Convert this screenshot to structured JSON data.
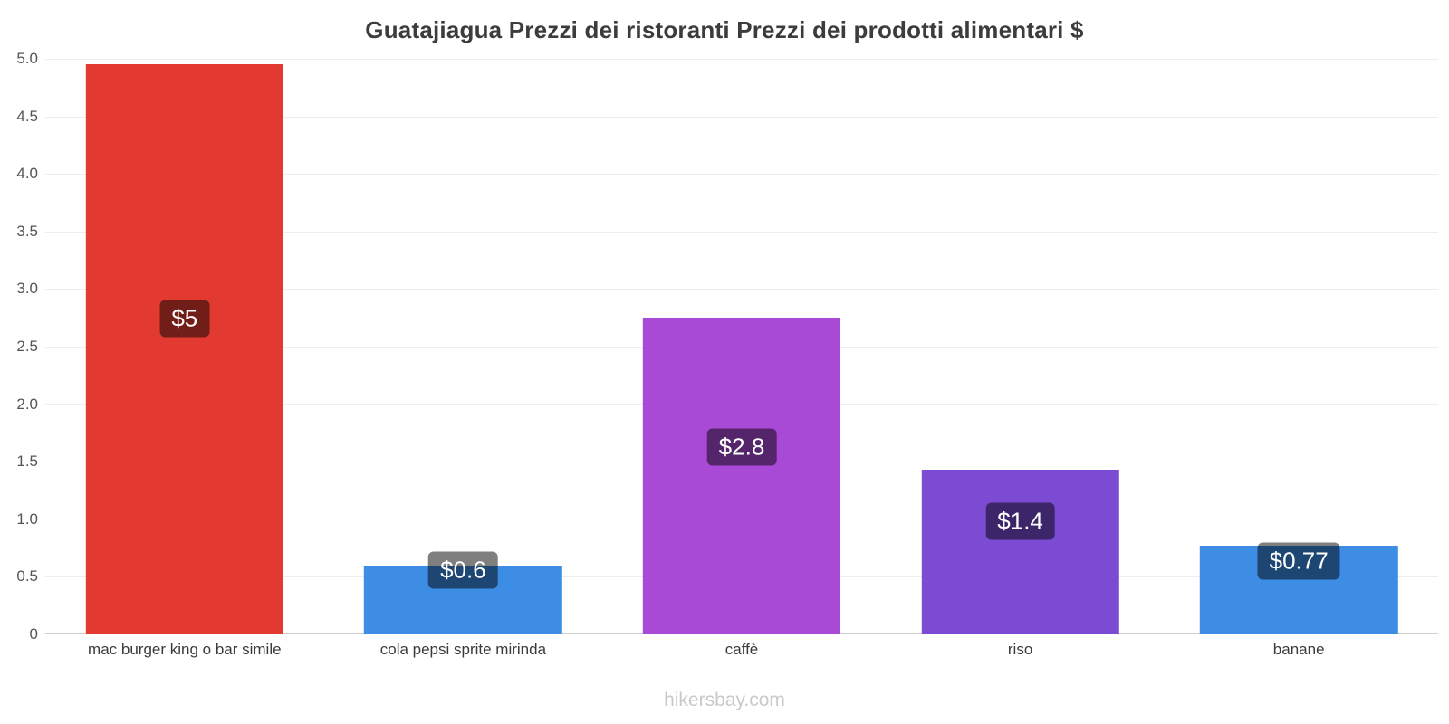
{
  "title": "Guatajiagua Prezzi dei ristoranti Prezzi dei prodotti alimentari $",
  "footer": "hikersbay.com",
  "chart_data": {
    "type": "bar",
    "title": "Guatajiagua Prezzi dei ristoranti Prezzi dei prodotti alimentari $",
    "categories": [
      "mac burger king o bar simile",
      "cola pepsi sprite mirinda",
      "caffè",
      "riso",
      "banane"
    ],
    "values": [
      4.95,
      0.6,
      2.75,
      1.43,
      0.77
    ],
    "value_labels": [
      "$5",
      "$0.6",
      "$2.8",
      "$1.4",
      "$0.77"
    ],
    "value_label_centers": [
      2.74,
      0.56,
      1.63,
      0.98,
      0.64
    ],
    "bar_colors": [
      "#e23a31",
      "#3d8de4",
      "#a94ad6",
      "#7b4bd3",
      "#3d8de4"
    ],
    "value_label_box_color": "rgba(0,0,0,0.5)",
    "xlabel": "",
    "ylabel": "",
    "ylim": [
      0,
      5
    ],
    "yticks": [
      0,
      0.5,
      1.0,
      1.5,
      2.0,
      2.5,
      3.0,
      3.5,
      4.0,
      4.5,
      5.0
    ],
    "ytick_labels": [
      "0",
      "0.5",
      "1.0",
      "1.5",
      "2.0",
      "2.5",
      "3.0",
      "3.5",
      "4.0",
      "4.5",
      "5.0"
    ],
    "grid": true,
    "legend": false,
    "watermark": "hikersbay.com"
  }
}
